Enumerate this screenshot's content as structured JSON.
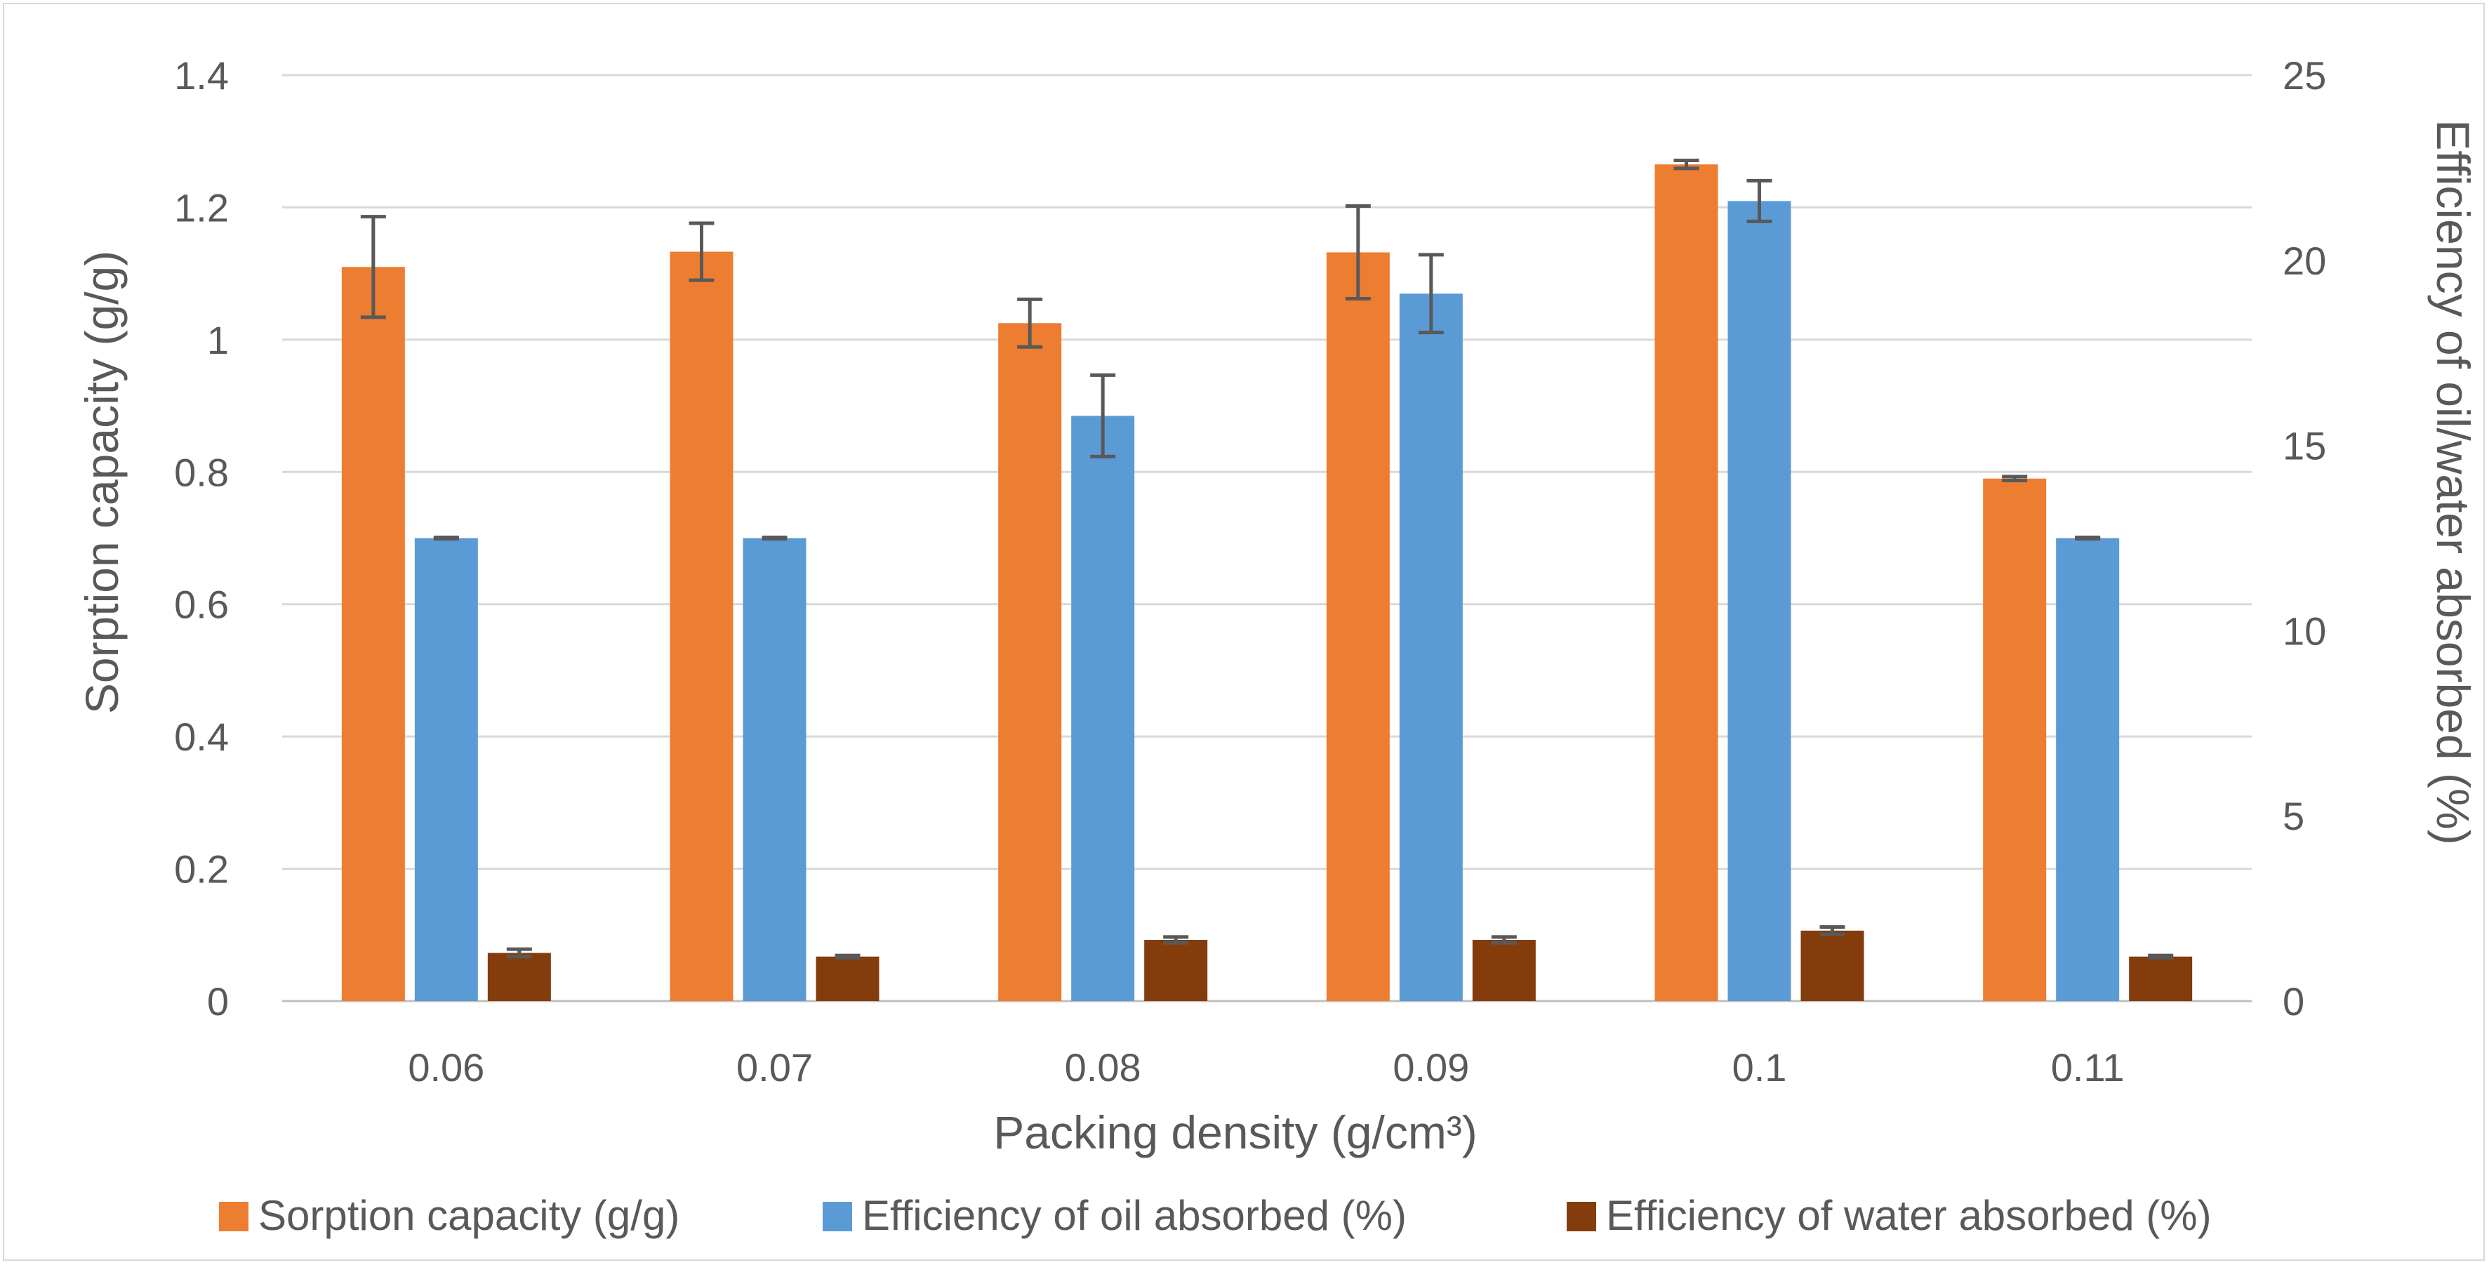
{
  "chart_data": {
    "type": "bar",
    "title": "",
    "xlabel": "Packing density (g/cm³)",
    "ylabel": "Sorption capacity (g/g)",
    "y2label": "Efficiency of oil/water absorbed (%)",
    "ylim": [
      0,
      1.4
    ],
    "y2lim": [
      0,
      25
    ],
    "yticks": [
      "0",
      "0.2",
      "0.4",
      "0.6",
      "0.8",
      "1",
      "1.2",
      "1.4"
    ],
    "y2ticks": [
      "0",
      "5",
      "10",
      "15",
      "20",
      "25"
    ],
    "categories": [
      "0.06",
      "0.07",
      "0.08",
      "0.09",
      "0.1",
      "0.11"
    ],
    "grid": true,
    "legend_position": "bottom",
    "series": [
      {
        "name": "Sorption capacity (g/g)",
        "axis": "left",
        "color": "#ED7D31",
        "values": [
          1.11,
          1.133,
          1.025,
          1.132,
          1.265,
          0.79
        ],
        "errors": [
          0.076,
          0.043,
          0.036,
          0.07,
          0.006,
          0.003
        ]
      },
      {
        "name": "Efficiency of oil absorbed (%)",
        "axis": "right",
        "color": "#5B9BD5",
        "values": [
          12.5,
          12.5,
          15.8,
          19.1,
          21.6,
          12.5
        ],
        "errors": [
          0.02,
          0.02,
          1.1,
          1.05,
          0.55,
          0.02
        ]
      },
      {
        "name": "Efficiency of water absorbed (%)",
        "axis": "right",
        "color": "#843C0C",
        "values": [
          1.3,
          1.2,
          1.65,
          1.65,
          1.9,
          1.2
        ],
        "errors": [
          0.1,
          0.03,
          0.08,
          0.08,
          0.1,
          0.03
        ]
      }
    ]
  }
}
